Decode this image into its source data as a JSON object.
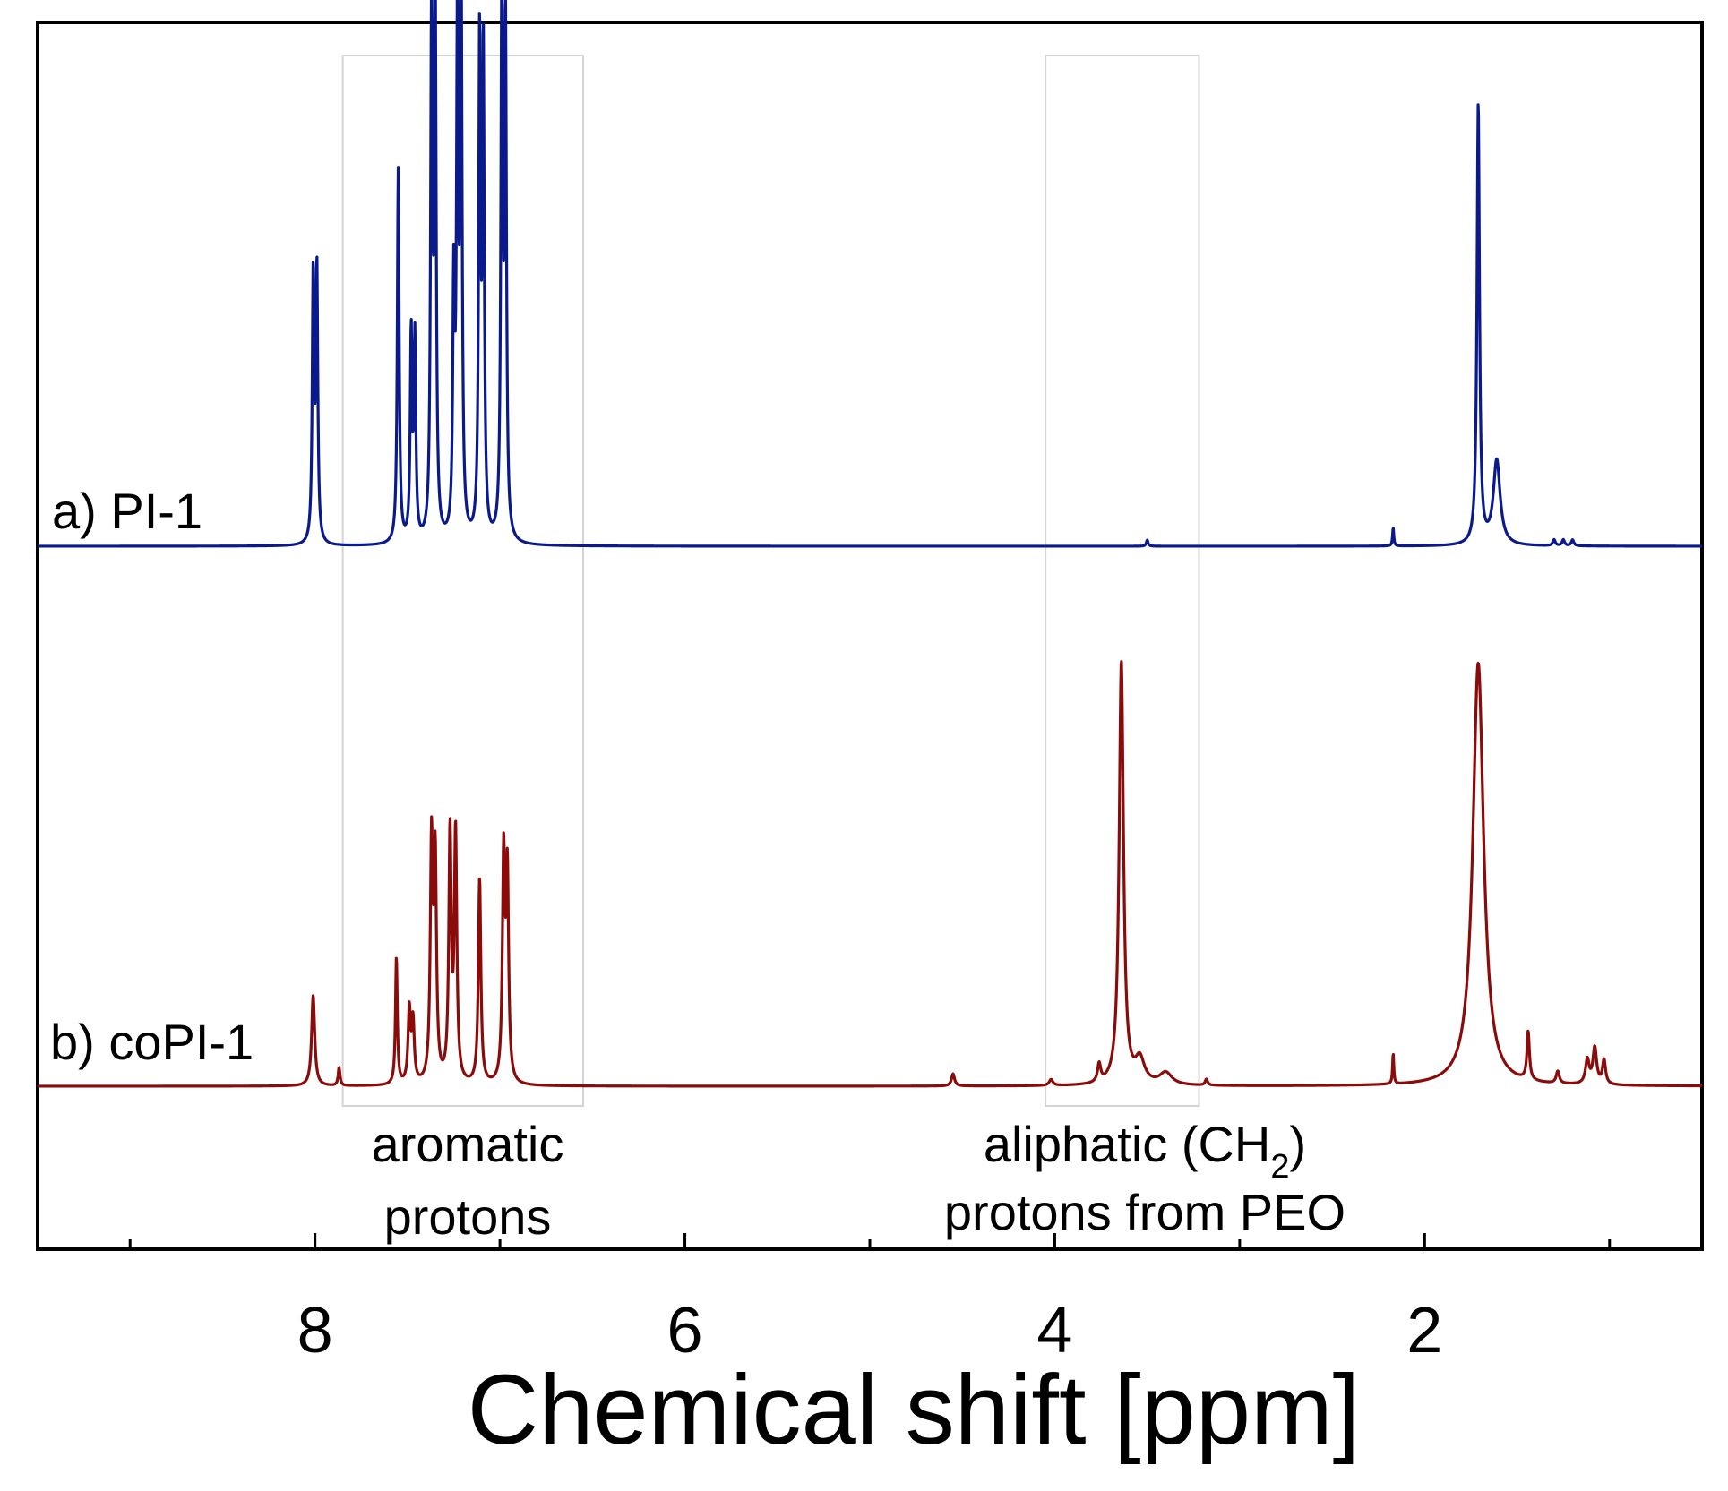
{
  "chart_data": {
    "type": "line",
    "title": "",
    "xlabel": "Chemical shift [ppm]",
    "ylabel": "",
    "x_reversed": true,
    "xlim": [
      9.5,
      0.5
    ],
    "x_ticks": [
      {
        "value": 8,
        "label": "8"
      },
      {
        "value": 6,
        "label": "6"
      },
      {
        "value": 4,
        "label": "4"
      },
      {
        "value": 2,
        "label": "2"
      }
    ],
    "x_minor_ticks": [
      9,
      7,
      5,
      3,
      1
    ],
    "grid": false,
    "series": [
      {
        "name": "a) PI-1",
        "color": "#0a1a8c",
        "peaks": [
          {
            "ppm": 8.01,
            "height": 0.44,
            "width": 0.006
          },
          {
            "ppm": 7.99,
            "height": 0.45,
            "width": 0.006
          },
          {
            "ppm": 7.55,
            "height": 0.62,
            "width": 0.006
          },
          {
            "ppm": 7.48,
            "height": 0.34,
            "width": 0.006
          },
          {
            "ppm": 7.46,
            "height": 0.33,
            "width": 0.006
          },
          {
            "ppm": 7.37,
            "height": 0.87,
            "width": 0.006
          },
          {
            "ppm": 7.35,
            "height": 0.9,
            "width": 0.006
          },
          {
            "ppm": 7.25,
            "height": 0.4,
            "width": 0.006
          },
          {
            "ppm": 7.23,
            "height": 0.84,
            "width": 0.006
          },
          {
            "ppm": 7.21,
            "height": 0.95,
            "width": 0.006
          },
          {
            "ppm": 7.11,
            "height": 0.82,
            "width": 0.006
          },
          {
            "ppm": 7.09,
            "height": 0.8,
            "width": 0.006
          },
          {
            "ppm": 6.99,
            "height": 0.92,
            "width": 0.006
          },
          {
            "ppm": 6.97,
            "height": 0.84,
            "width": 0.006
          },
          {
            "ppm": 3.5,
            "height": 0.01,
            "width": 0.006
          },
          {
            "ppm": 2.17,
            "height": 0.03,
            "width": 0.004
          },
          {
            "ppm": 1.71,
            "height": 0.73,
            "width": 0.008
          },
          {
            "ppm": 1.61,
            "height": 0.14,
            "width": 0.022
          },
          {
            "ppm": 1.3,
            "height": 0.01,
            "width": 0.008
          },
          {
            "ppm": 1.25,
            "height": 0.01,
            "width": 0.008
          },
          {
            "ppm": 1.2,
            "height": 0.01,
            "width": 0.008
          }
        ]
      },
      {
        "name": "b) coPI-1",
        "color": "#8b0a0a",
        "peaks": [
          {
            "ppm": 8.01,
            "height": 0.15,
            "width": 0.01
          },
          {
            "ppm": 7.87,
            "height": 0.03,
            "width": 0.006
          },
          {
            "ppm": 7.56,
            "height": 0.21,
            "width": 0.006
          },
          {
            "ppm": 7.49,
            "height": 0.12,
            "width": 0.008
          },
          {
            "ppm": 7.47,
            "height": 0.1,
            "width": 0.008
          },
          {
            "ppm": 7.37,
            "height": 0.39,
            "width": 0.008
          },
          {
            "ppm": 7.35,
            "height": 0.36,
            "width": 0.008
          },
          {
            "ppm": 7.27,
            "height": 0.41,
            "width": 0.008
          },
          {
            "ppm": 7.24,
            "height": 0.41,
            "width": 0.008
          },
          {
            "ppm": 7.11,
            "height": 0.34,
            "width": 0.008
          },
          {
            "ppm": 6.98,
            "height": 0.37,
            "width": 0.008
          },
          {
            "ppm": 6.96,
            "height": 0.34,
            "width": 0.008
          },
          {
            "ppm": 4.55,
            "height": 0.02,
            "width": 0.01
          },
          {
            "ppm": 4.02,
            "height": 0.01,
            "width": 0.012
          },
          {
            "ppm": 3.76,
            "height": 0.03,
            "width": 0.01
          },
          {
            "ppm": 3.64,
            "height": 0.7,
            "width": 0.014
          },
          {
            "ppm": 3.54,
            "height": 0.04,
            "width": 0.03
          },
          {
            "ppm": 3.4,
            "height": 0.02,
            "width": 0.04
          },
          {
            "ppm": 3.18,
            "height": 0.01,
            "width": 0.008
          },
          {
            "ppm": 2.17,
            "height": 0.05,
            "width": 0.004
          },
          {
            "ppm": 1.71,
            "height": 0.7,
            "width": 0.035
          },
          {
            "ppm": 1.44,
            "height": 0.08,
            "width": 0.008
          },
          {
            "ppm": 1.28,
            "height": 0.02,
            "width": 0.01
          },
          {
            "ppm": 1.12,
            "height": 0.04,
            "width": 0.012
          },
          {
            "ppm": 1.08,
            "height": 0.06,
            "width": 0.012
          },
          {
            "ppm": 1.03,
            "height": 0.04,
            "width": 0.01
          }
        ]
      }
    ],
    "regions": [
      {
        "name": "aromatic",
        "from_ppm": 7.85,
        "to_ppm": 6.55,
        "label_lines": [
          "aromatic",
          "protons"
        ]
      },
      {
        "name": "aliphatic",
        "from_ppm": 4.05,
        "to_ppm": 3.22,
        "label_lines": [
          "aliphatic (CH",
          "2",
          ")",
          "protons from PEO"
        ]
      }
    ]
  }
}
